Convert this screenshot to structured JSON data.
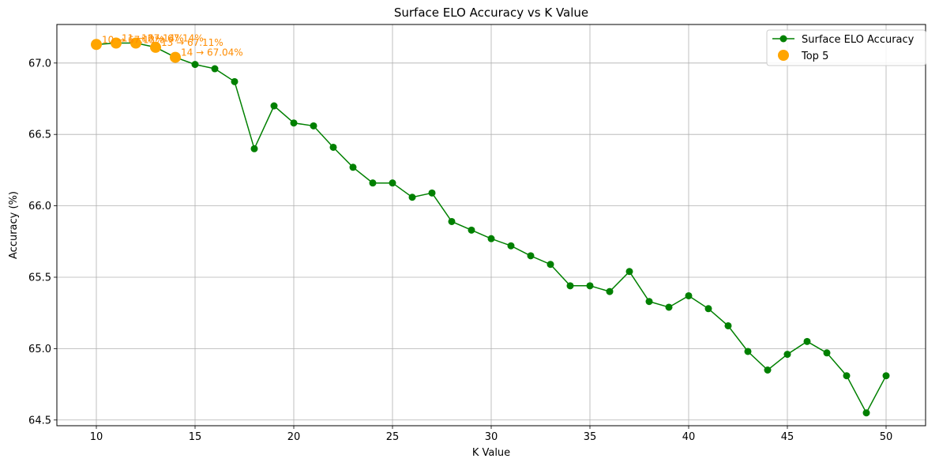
{
  "chart_data": {
    "type": "line",
    "title": "Surface ELO Accuracy vs K Value",
    "xlabel": "K Value",
    "ylabel": "Accuracy (%)",
    "xlim": [
      8,
      52
    ],
    "ylim": [
      64.46,
      67.27
    ],
    "xticks": [
      10,
      15,
      20,
      25,
      30,
      35,
      40,
      45,
      50
    ],
    "yticks": [
      64.5,
      65.0,
      65.5,
      66.0,
      66.5,
      67.0
    ],
    "yticks_labels": [
      "64.5",
      "65.0",
      "65.5",
      "66.0",
      "66.5",
      "67.0"
    ],
    "grid": true,
    "legend_position": "top-right",
    "line_color": "#008000",
    "highlight_color": "#FFA500",
    "annotation_color": "#FF8C00",
    "series": [
      {
        "name": "Surface ELO Accuracy",
        "x": [
          10,
          11,
          12,
          13,
          14,
          15,
          16,
          17,
          18,
          19,
          20,
          21,
          22,
          23,
          24,
          25,
          26,
          27,
          28,
          29,
          30,
          31,
          32,
          33,
          34,
          35,
          36,
          37,
          38,
          39,
          40,
          41,
          42,
          43,
          44,
          45,
          46,
          47,
          48,
          49,
          50
        ],
        "y": [
          67.13,
          67.14,
          67.14,
          67.11,
          67.04,
          66.99,
          66.96,
          66.87,
          66.4,
          66.7,
          66.58,
          66.56,
          66.41,
          66.27,
          66.16,
          66.16,
          66.06,
          66.09,
          65.89,
          65.83,
          65.77,
          65.72,
          65.65,
          65.59,
          65.44,
          65.44,
          65.4,
          65.54,
          65.33,
          65.29,
          65.37,
          65.28,
          65.16,
          64.98,
          64.85,
          64.96,
          65.05,
          64.97,
          64.81,
          64.55,
          64.81
        ]
      },
      {
        "name": "Top 5",
        "x": [
          10,
          11,
          12,
          13,
          14
        ],
        "y": [
          67.13,
          67.14,
          67.14,
          67.11,
          67.04
        ]
      }
    ],
    "annotations": [
      "10 → 67.13%",
      "11 → 67.14%",
      "12 → 67.14%",
      "13 → 67.11%",
      "14 → 67.04%"
    ]
  }
}
